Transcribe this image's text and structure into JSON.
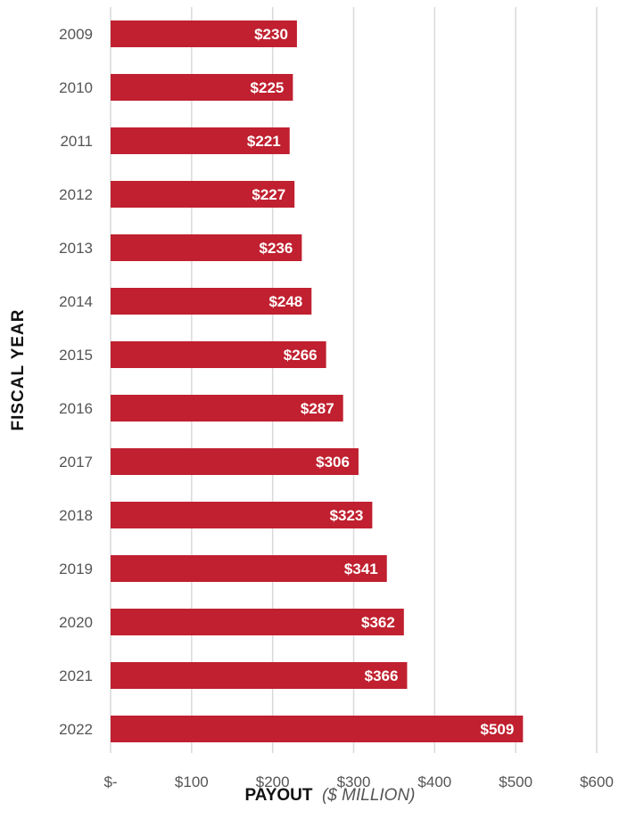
{
  "chart_data": {
    "type": "bar",
    "orientation": "horizontal",
    "categories": [
      "2009",
      "2010",
      "2011",
      "2012",
      "2013",
      "2014",
      "2015",
      "2016",
      "2017",
      "2018",
      "2019",
      "2020",
      "2021",
      "2022"
    ],
    "values": [
      230,
      225,
      221,
      227,
      236,
      248,
      266,
      287,
      306,
      323,
      341,
      362,
      366,
      509
    ],
    "data_labels": [
      "$230",
      "$225",
      "$221",
      "$227",
      "$236",
      "$248",
      "$266",
      "$287",
      "$306",
      "$323",
      "$341",
      "$362",
      "$366",
      "$509"
    ],
    "xticks": [
      0,
      100,
      200,
      300,
      400,
      500,
      600
    ],
    "xtick_labels": [
      "$-",
      "$100",
      "$200",
      "$300",
      "$400",
      "$500",
      "$600"
    ],
    "xlim": [
      0,
      600
    ],
    "xlabel": "PAYOUT",
    "xlabel_unit": "($ MILLION)",
    "ylabel": "FISCAL YEAR",
    "grid": "vertical",
    "bar_color": "#c0202f",
    "grid_color": "#d9d9d9"
  }
}
